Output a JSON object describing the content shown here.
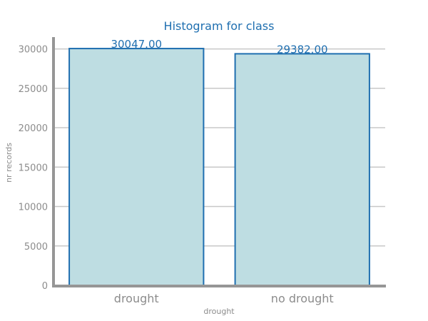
{
  "chart_data": {
    "type": "bar",
    "title": "Histogram for class",
    "xlabel": "drought",
    "ylabel": "nr records",
    "categories": [
      "drought",
      "no drought"
    ],
    "values": [
      30047,
      29382
    ],
    "data_labels": [
      "30047.00",
      "29382.00"
    ],
    "ylim": [
      0,
      31500
    ],
    "yticks": [
      0,
      5000,
      10000,
      15000,
      20000,
      25000,
      30000
    ],
    "grid": true,
    "colors": {
      "bar_fill": "#bedde2",
      "bar_edge": "#1f6fb0",
      "title": "#1f6fb0",
      "axis": "#969696",
      "tick_text": "#8c8c8c"
    }
  }
}
